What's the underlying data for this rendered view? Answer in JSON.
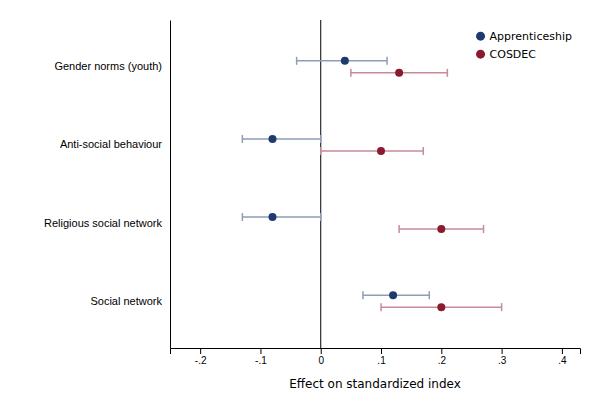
{
  "chart_data": {
    "type": "errorbar",
    "orientation": "horizontal",
    "categories": [
      "Gender norms (youth)",
      "Anti-social behaviour",
      "Religious social network",
      "Social network"
    ],
    "series": [
      {
        "name": "Apprenticeship",
        "color": "#1f3b6e",
        "values": [
          0.04,
          -0.08,
          -0.08,
          0.12
        ],
        "ci_low": [
          -0.04,
          -0.13,
          -0.13,
          0.07
        ],
        "ci_high": [
          0.11,
          0.0,
          0.0,
          0.18
        ]
      },
      {
        "name": "COSDEC",
        "color": "#8b1a2e",
        "values": [
          0.13,
          0.1,
          0.2,
          0.2
        ],
        "ci_low": [
          0.05,
          0.0,
          0.13,
          0.1
        ],
        "ci_high": [
          0.21,
          0.17,
          0.27,
          0.3
        ]
      }
    ],
    "xlabel": "Effect on standardized index",
    "xlim": [
      -0.25,
      0.43
    ],
    "xticks": [
      {
        "value": -0.2,
        "label": "-.2"
      },
      {
        "value": -0.1,
        "label": "-.1"
      },
      0,
      {
        "value": 0.1,
        "label": ".1"
      },
      {
        "value": 0.2,
        "label": ".2"
      },
      {
        "value": 0.3,
        "label": ".3"
      },
      {
        "value": 0.4,
        "label": ".4"
      }
    ],
    "reference_line": 0,
    "legend": "upper right",
    "grid": false
  }
}
